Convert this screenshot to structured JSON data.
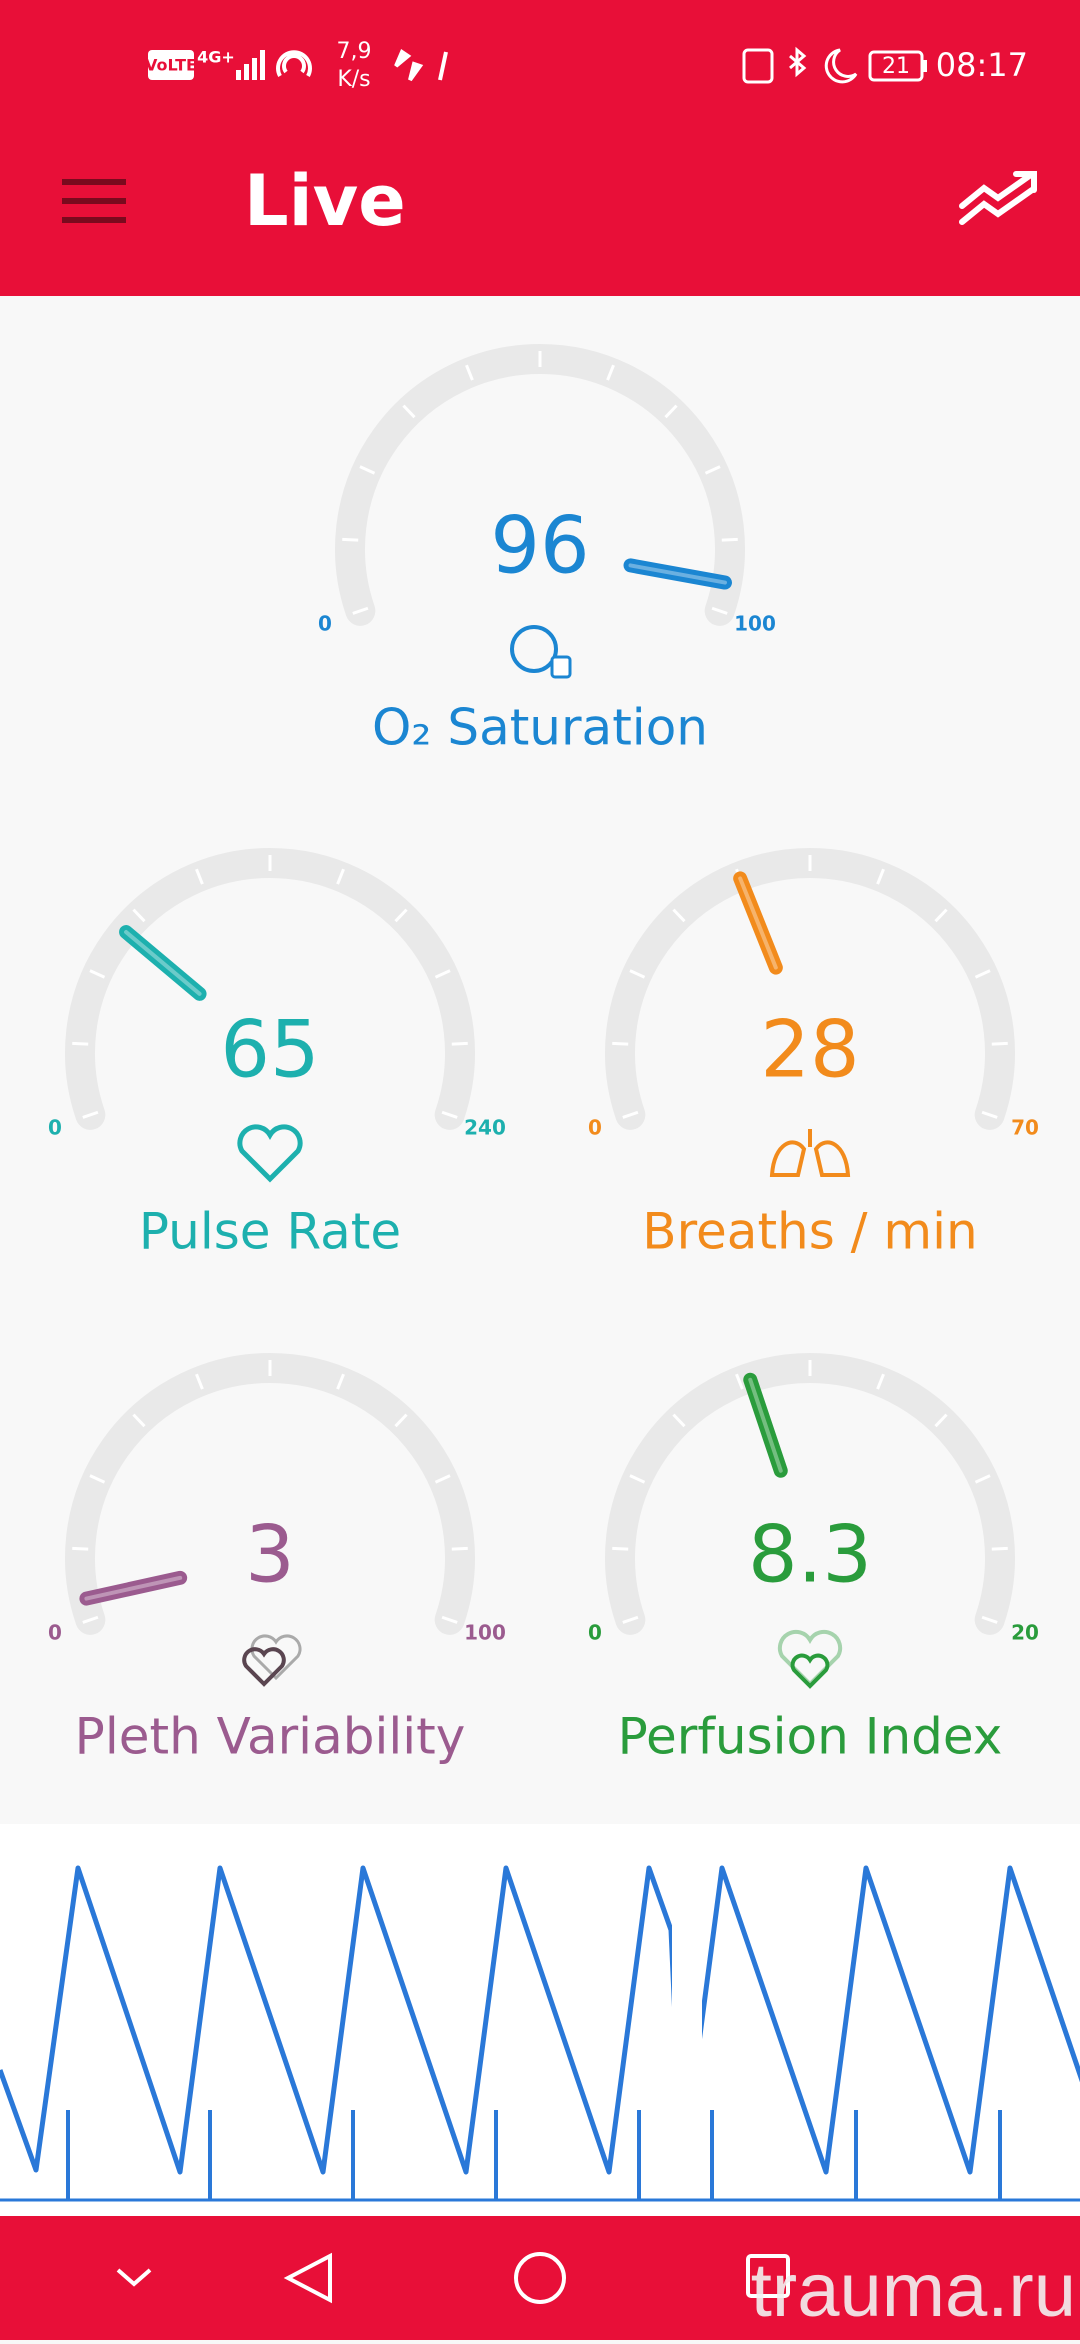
{
  "status_bar": {
    "network": "VoLTE",
    "signal": "4G+",
    "speed": "7,9",
    "speed_unit": "K/s",
    "battery": "21",
    "time": "08:17"
  },
  "header": {
    "title": "Live"
  },
  "gauges": [
    {
      "label": "O₂ Saturation",
      "value": 96,
      "min": 0,
      "max": 100,
      "color": "#1b86d2",
      "icon": "o2"
    },
    {
      "label": "Pulse Rate",
      "value": 65,
      "min": 0,
      "max": 240,
      "color": "#1db0ae",
      "icon": "heart"
    },
    {
      "label": "Breaths / min",
      "value": 28,
      "min": 0,
      "max": 70,
      "color": "#f28b1c",
      "icon": "lungs"
    },
    {
      "label": "Pleth Variability",
      "value": 3,
      "min": 0,
      "max": 100,
      "color": "#9b5b8f",
      "icon": "hearts"
    },
    {
      "label": "Perfusion Index",
      "value": 8.3,
      "min": 0,
      "max": 20,
      "color": "#2a9c3c",
      "icon": "heart2"
    }
  ],
  "watermark": "trauma.ru"
}
